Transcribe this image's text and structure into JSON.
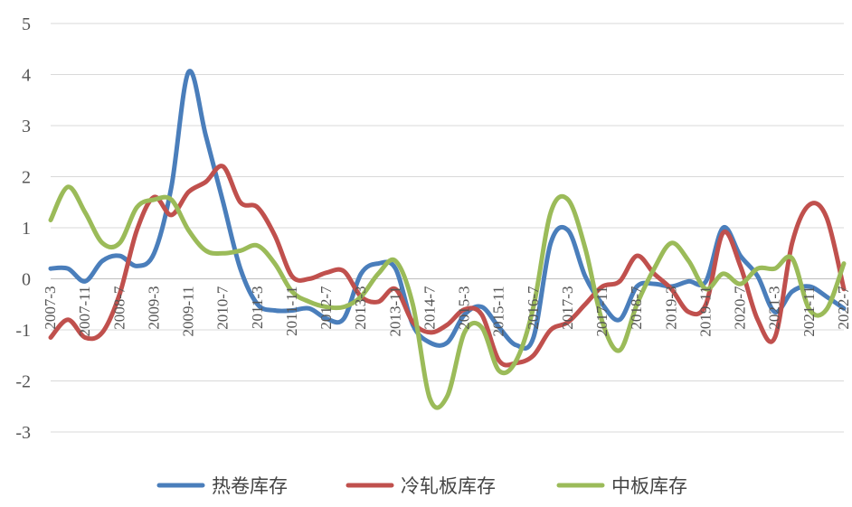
{
  "chart_data": {
    "type": "line",
    "y_ticks": [
      "5",
      "4",
      "3",
      "2",
      "1",
      "0",
      "-1",
      "-2",
      "-3"
    ],
    "ylim": [
      -3,
      5
    ],
    "grid": true,
    "legend_position": "bottom",
    "x": [
      "2007-3",
      "2007-7",
      "2007-11",
      "2008-3",
      "2008-7",
      "2008-11",
      "2009-3",
      "2009-7",
      "2009-11",
      "2010-3",
      "2010-7",
      "2010-11",
      "2011-3",
      "2011-7",
      "2011-11",
      "2012-3",
      "2012-7",
      "2012-11",
      "2013-3",
      "2013-7",
      "2013-11",
      "2014-3",
      "2014-7",
      "2014-11",
      "2015-3",
      "2015-7",
      "2015-11",
      "2016-3",
      "2016-7",
      "2016-11",
      "2017-3",
      "2017-7",
      "2017-11",
      "2018-3",
      "2018-7",
      "2018-11",
      "2019-3",
      "2019-7",
      "2019-11",
      "2020-3",
      "2020-7",
      "2020-11",
      "2021-3",
      "2021-7",
      "2021-11",
      "2022-3",
      "2022-7"
    ],
    "x_tick_labels": [
      "2007-3",
      "2007-11",
      "2008-7",
      "2009-3",
      "2009-11",
      "2010-7",
      "2011-3",
      "2011-11",
      "2012-7",
      "2013-3",
      "2013-11",
      "2014-7",
      "2015-3",
      "2015-11",
      "2016-7",
      "2017-3",
      "2017-11",
      "2018-7",
      "2019-3",
      "2019-11",
      "2020-7",
      "2021-3",
      "2021-11",
      "2022-7"
    ],
    "series": [
      {
        "name": "热卷库存",
        "color": "#4a7ebb",
        "values": [
          0.2,
          0.2,
          -0.05,
          0.35,
          0.45,
          0.25,
          0.5,
          1.8,
          4.05,
          2.8,
          1.5,
          0.2,
          -0.5,
          -0.62,
          -0.62,
          -0.58,
          -0.78,
          -0.78,
          0.1,
          0.3,
          0.2,
          -0.9,
          -1.25,
          -1.25,
          -0.7,
          -0.55,
          -0.95,
          -1.3,
          -1.15,
          0.7,
          0.95,
          0.05,
          -0.5,
          -0.8,
          -0.15,
          -0.1,
          -0.15,
          -0.05,
          -0.05,
          1.0,
          0.45,
          0.05,
          -0.65,
          -0.25,
          -0.15,
          -0.35,
          -0.58
        ]
      },
      {
        "name": "冷轧板库存",
        "color": "#c0504d",
        "values": [
          -1.15,
          -0.8,
          -1.15,
          -1.05,
          -0.3,
          0.95,
          1.6,
          1.25,
          1.7,
          1.9,
          2.2,
          1.5,
          1.4,
          0.85,
          0.05,
          0.0,
          0.12,
          0.15,
          -0.35,
          -0.45,
          -0.2,
          -0.85,
          -1.05,
          -0.9,
          -0.6,
          -0.7,
          -1.6,
          -1.65,
          -1.5,
          -1.0,
          -0.85,
          -0.5,
          -0.15,
          -0.05,
          0.45,
          0.1,
          -0.2,
          -0.65,
          -0.5,
          0.9,
          0.25,
          -0.8,
          -1.15,
          0.7,
          1.45,
          1.2,
          -0.2
        ]
      },
      {
        "name": "中板库存",
        "color": "#9bbb59",
        "values": [
          1.15,
          1.8,
          1.3,
          0.7,
          0.7,
          1.4,
          1.55,
          1.55,
          0.95,
          0.55,
          0.5,
          0.55,
          0.65,
          0.3,
          -0.25,
          -0.45,
          -0.55,
          -0.55,
          -0.35,
          0.1,
          0.35,
          -0.5,
          -2.35,
          -2.3,
          -1.05,
          -0.95,
          -1.8,
          -1.6,
          -0.55,
          1.3,
          1.55,
          0.6,
          -0.85,
          -1.4,
          -0.5,
          0.2,
          0.7,
          0.35,
          -0.2,
          0.1,
          -0.1,
          0.2,
          0.2,
          0.4,
          -0.6,
          -0.6,
          0.3
        ]
      }
    ]
  }
}
